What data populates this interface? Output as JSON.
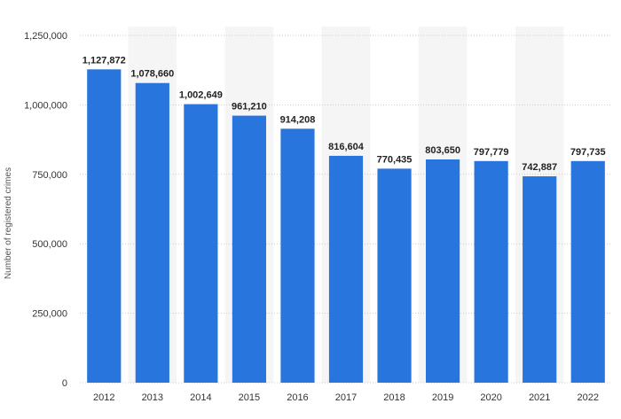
{
  "chart_data": {
    "type": "bar",
    "title": "",
    "xlabel": "",
    "ylabel": "Number of registered crimes",
    "categories": [
      "2012",
      "2013",
      "2014",
      "2015",
      "2016",
      "2017",
      "2018",
      "2019",
      "2020",
      "2021",
      "2022"
    ],
    "values": [
      1127872,
      1078660,
      1002649,
      961210,
      914208,
      816604,
      770435,
      803650,
      797779,
      742887,
      797735
    ],
    "data_labels": [
      "1,127,872",
      "1,078,660",
      "1,002,649",
      "961,210",
      "914,208",
      "816,604",
      "770,435",
      "803,650",
      "797,779",
      "742,887",
      "797,735"
    ],
    "ylim": [
      0,
      1250000
    ],
    "y_ticks": [
      0,
      250000,
      500000,
      750000,
      1000000,
      1250000
    ],
    "y_tick_labels": [
      "0",
      "250,000",
      "500,000",
      "750,000",
      "1,000,000",
      "1,250,000"
    ],
    "grid": true,
    "grid_style": "dotted horizontal",
    "legend": false,
    "colors": {
      "bar": "#2876dd",
      "alt_band": "#f5f5f5",
      "grid": "#cccccc"
    }
  }
}
